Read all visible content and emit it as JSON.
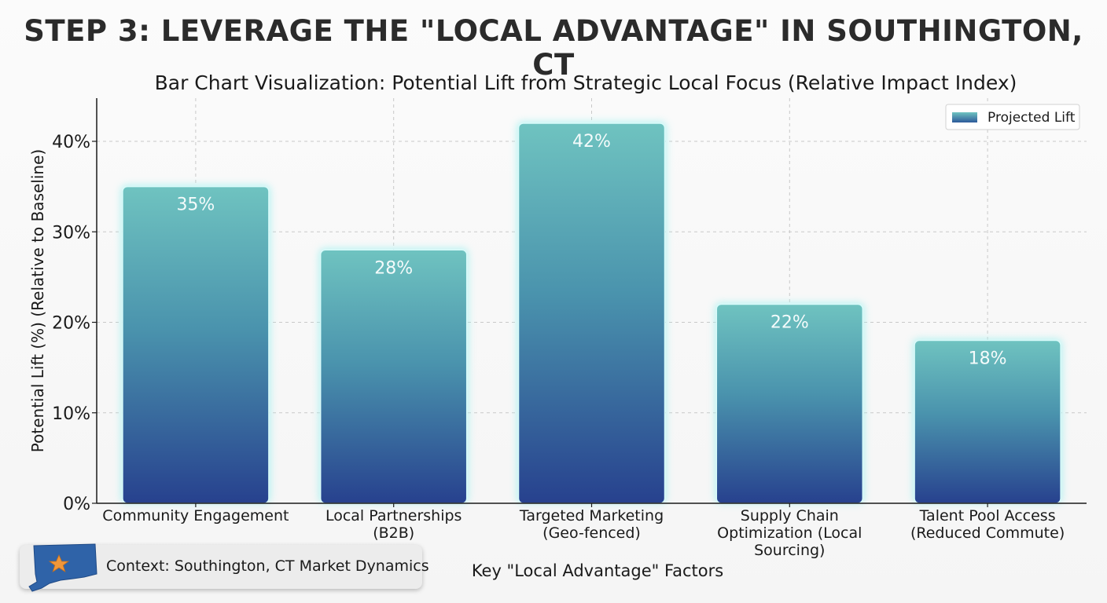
{
  "header": {
    "title": "STEP 3: LEVERAGE THE \"LOCAL ADVANTAGE\" IN SOUTHINGTON, CT"
  },
  "context": {
    "label": "Context: Southington, CT Market Dynamics",
    "icon": "connecticut-map-star-icon"
  },
  "colors": {
    "bar_top": "#6fc3c0",
    "bar_bottom": "#27418e",
    "bar_glow": "#9ff0ef",
    "legend_swatch": "#3f7fb0",
    "grid": "#c9c9c9"
  },
  "chart_data": {
    "type": "bar",
    "title": "Bar Chart Visualization: Potential Lift from Strategic Local Focus (Relative Impact Index)",
    "xlabel": "Key \"Local Advantage\" Factors",
    "ylabel": "Potential Lift (%) (Relative to Baseline)",
    "categories": [
      [
        "Community Engagement"
      ],
      [
        "Local Partnerships",
        "(B2B)"
      ],
      [
        "Targeted Marketing",
        "(Geo-fenced)"
      ],
      [
        "Supply Chain",
        "Optimization (Local",
        "Sourcing)"
      ],
      [
        "Talent Pool Access",
        "(Reduced Commute)"
      ]
    ],
    "series": [
      {
        "name": "Projected Lift",
        "values": [
          35,
          28,
          42,
          22,
          18
        ]
      }
    ],
    "value_labels": [
      "35%",
      "28%",
      "42%",
      "22%",
      "18%"
    ],
    "ylim": [
      0,
      45
    ],
    "yticks": [
      0,
      10,
      20,
      30,
      40
    ],
    "ytick_labels": [
      "0%",
      "10%",
      "20%",
      "30%",
      "40%"
    ],
    "grid": true,
    "legend_position": "top-right"
  }
}
